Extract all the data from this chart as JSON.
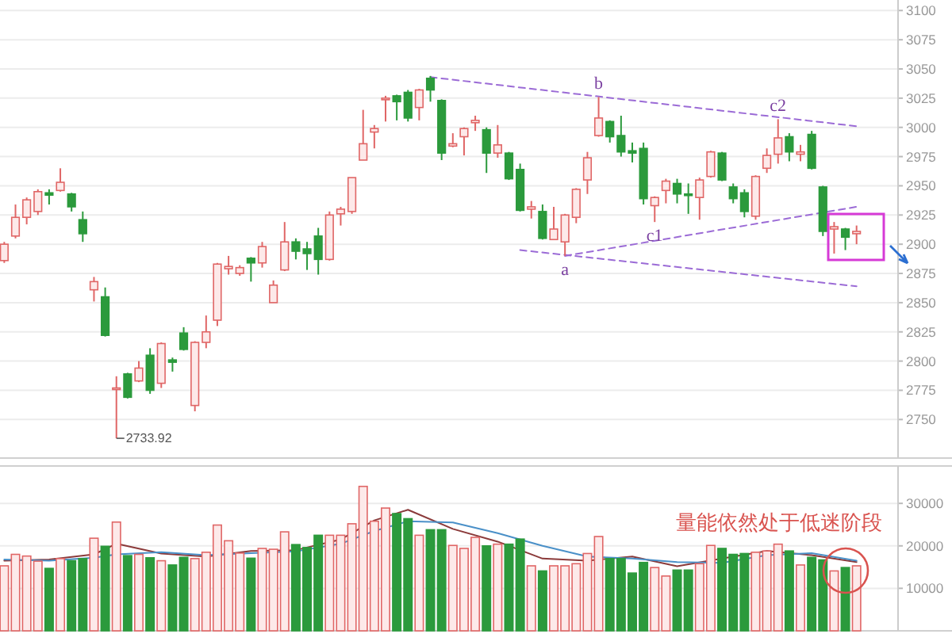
{
  "chart_data": [
    {
      "type": "candlestick",
      "categories": [
        null,
        null,
        null,
        null,
        null,
        null,
        null,
        null,
        null,
        null,
        null,
        null,
        null,
        null,
        null,
        null,
        null,
        null,
        null,
        null,
        null,
        null,
        null,
        null,
        null,
        null,
        null,
        null,
        null,
        null,
        null,
        null,
        null,
        null,
        null,
        null,
        null,
        null,
        null,
        null,
        null,
        null,
        null,
        null,
        null,
        null,
        null,
        null,
        null,
        null,
        null,
        null,
        null,
        null,
        null,
        null,
        null,
        null,
        null,
        null,
        null,
        null,
        null,
        null,
        null,
        null,
        null,
        null,
        null,
        null,
        null,
        null,
        null,
        null,
        null,
        null,
        null
      ],
      "ylim": [
        2717,
        3109
      ],
      "yticks": [
        2750,
        2775,
        2800,
        2825,
        2850,
        2875,
        2900,
        2925,
        2950,
        2975,
        3000,
        3025,
        3050,
        3075,
        3100
      ],
      "grid": "y",
      "tick_labels": "y",
      "ohlc": [
        [
          2886,
          2902,
          2884,
          2900
        ],
        [
          2907,
          2934,
          2905,
          2923
        ],
        [
          2923,
          2940,
          2917,
          2938
        ],
        [
          2928,
          2947,
          2925,
          2945
        ],
        [
          2944,
          2947,
          2934,
          2942
        ],
        [
          2946,
          2965,
          2945,
          2953
        ],
        [
          2943,
          2944,
          2928,
          2932
        ],
        [
          2921,
          2928,
          2902,
          2909
        ],
        [
          2861,
          2872,
          2851,
          2868
        ],
        [
          2855,
          2863,
          2821,
          2822
        ],
        [
          2776,
          2787,
          2733.92,
          2777
        ],
        [
          2789,
          2790,
          2768,
          2769
        ],
        [
          2783,
          2800,
          2782,
          2794
        ],
        [
          2805,
          2811,
          2772,
          2775
        ],
        [
          2781,
          2816,
          2777,
          2815
        ],
        [
          2801,
          2803,
          2791,
          2799
        ],
        [
          2824,
          2829,
          2809,
          2810
        ],
        [
          2762,
          2817,
          2757,
          2816
        ],
        [
          2816,
          2839,
          2811,
          2825
        ],
        [
          2835,
          2884,
          2830,
          2883
        ],
        [
          2879,
          2890,
          2874,
          2881
        ],
        [
          2875,
          2882,
          2873,
          2880
        ],
        [
          2888,
          2889,
          2868,
          2884
        ],
        [
          2884,
          2902,
          2880,
          2898
        ],
        [
          2850,
          2869,
          2850,
          2865
        ],
        [
          2878,
          2919,
          2877,
          2902
        ],
        [
          2902,
          2905,
          2887,
          2894
        ],
        [
          2896,
          2902,
          2878,
          2892
        ],
        [
          2907,
          2914,
          2874,
          2887
        ],
        [
          2887,
          2928,
          2886,
          2925
        ],
        [
          2926,
          2932,
          2916,
          2930
        ],
        [
          2928,
          2957,
          2926,
          2957
        ],
        [
          2972,
          3015,
          2972,
          2986
        ],
        [
          2996,
          3002,
          2982,
          2999
        ],
        [
          3024,
          3027,
          3005,
          3025
        ],
        [
          3027,
          3028,
          3006,
          3022
        ],
        [
          3030,
          3032,
          3005,
          3008
        ],
        [
          3017,
          3033,
          3006,
          3032
        ],
        [
          3042,
          3044,
          3022,
          3032
        ],
        [
          3023,
          3024,
          2972,
          2978
        ],
        [
          2984,
          2995,
          2983,
          2986
        ],
        [
          2992,
          3000,
          2976,
          2999
        ],
        [
          3004,
          3010,
          2997,
          3006
        ],
        [
          2998,
          3000,
          2961,
          2978
        ],
        [
          2978,
          3002,
          2974,
          2985
        ],
        [
          2978,
          2979,
          2955,
          2956
        ],
        [
          2964,
          2969,
          2928,
          2929
        ],
        [
          2930,
          2937,
          2922,
          2932
        ],
        [
          2928,
          2934,
          2904,
          2905
        ],
        [
          2904,
          2932,
          2904,
          2913
        ],
        [
          2902,
          2926,
          2890,
          2925
        ],
        [
          2923,
          2948,
          2918,
          2947
        ],
        [
          2955,
          2979,
          2943,
          2974
        ],
        [
          2993,
          3026,
          2992,
          3008
        ],
        [
          3005,
          3006,
          2987,
          2992
        ],
        [
          2993,
          3010,
          2975,
          2979
        ],
        [
          2980,
          2987,
          2970,
          2978
        ],
        [
          2982,
          2987,
          2934,
          2939
        ],
        [
          2933,
          2941,
          2919,
          2940
        ],
        [
          2946,
          2956,
          2935,
          2954
        ],
        [
          2952,
          2956,
          2935,
          2943
        ],
        [
          2943,
          2952,
          2926,
          2942
        ],
        [
          2940,
          2957,
          2921,
          2955
        ],
        [
          2958,
          2980,
          2957,
          2979
        ],
        [
          2978,
          2979,
          2954,
          2955
        ],
        [
          2949,
          2952,
          2935,
          2939
        ],
        [
          2944,
          2947,
          2923,
          2928
        ],
        [
          2924,
          2959,
          2921,
          2958
        ],
        [
          2965,
          2982,
          2961,
          2976
        ],
        [
          2977,
          3007,
          2969,
          2991
        ],
        [
          2992,
          2995,
          2971,
          2979
        ],
        [
          2977,
          2985,
          2971,
          2979
        ],
        [
          2994,
          2997,
          2964,
          2965
        ],
        [
          2949,
          2950,
          2907,
          2911
        ],
        [
          2913,
          2919,
          2892,
          2915
        ],
        [
          2913,
          2914,
          2895,
          2906
        ],
        [
          2909,
          2916,
          2900,
          2911
        ]
      ],
      "colors": [
        "#e06666",
        "#e06666",
        "#e06666",
        "#e06666",
        "#2b9a3c",
        "#e06666",
        "#2b9a3c",
        "#2b9a3c",
        "#e06666",
        "#2b9a3c",
        "#e06666",
        "#2b9a3c",
        "#e06666",
        "#2b9a3c",
        "#e06666",
        "#2b9a3c",
        "#2b9a3c",
        "#e06666",
        "#e06666",
        "#e06666",
        "#e06666",
        "#e06666",
        "#2b9a3c",
        "#e06666",
        "#e06666",
        "#e06666",
        "#2b9a3c",
        "#2b9a3c",
        "#2b9a3c",
        "#e06666",
        "#e06666",
        "#e06666",
        "#e06666",
        "#e06666",
        "#e06666",
        "#2b9a3c",
        "#2b9a3c",
        "#e06666",
        "#2b9a3c",
        "#2b9a3c",
        "#e06666",
        "#e06666",
        "#e06666",
        "#2b9a3c",
        "#e06666",
        "#2b9a3c",
        "#2b9a3c",
        "#e06666",
        "#2b9a3c",
        "#e06666",
        "#e06666",
        "#e06666",
        "#e06666",
        "#e06666",
        "#2b9a3c",
        "#2b9a3c",
        "#2b9a3c",
        "#2b9a3c",
        "#e06666",
        "#e06666",
        "#2b9a3c",
        "#2b9a3c",
        "#e06666",
        "#e06666",
        "#2b9a3c",
        "#2b9a3c",
        "#2b9a3c",
        "#e06666",
        "#e06666",
        "#e06666",
        "#2b9a3c",
        "#e06666",
        "#2b9a3c",
        "#2b9a3c",
        "#e06666",
        "#2b9a3c",
        "#e06666"
      ],
      "series": [
        {
          "type": "line",
          "values": [
            null,
            null,
            null,
            null,
            null,
            null,
            null,
            null,
            null,
            null,
            null,
            null,
            null,
            null,
            null,
            null,
            null,
            null,
            null,
            null,
            null,
            null,
            null,
            null,
            null,
            null,
            null,
            null,
            null,
            null,
            null,
            null,
            null,
            null,
            null,
            null,
            null,
            null,
            3043,
            null,
            null,
            null,
            null,
            null,
            null,
            null,
            null,
            null,
            null,
            null,
            null,
            null,
            null,
            null,
            null,
            null,
            null,
            null,
            null,
            null,
            null,
            null,
            null,
            null,
            null,
            null,
            null,
            null,
            null,
            null,
            null,
            null,
            null,
            null,
            null,
            null,
            3001
          ],
          "color": "#9b6bd6",
          "line_style": "dashed"
        },
        {
          "type": "line",
          "values": [
            null,
            null,
            null,
            null,
            null,
            null,
            null,
            null,
            null,
            null,
            null,
            null,
            null,
            null,
            null,
            null,
            null,
            null,
            null,
            null,
            null,
            null,
            null,
            null,
            null,
            null,
            null,
            null,
            null,
            null,
            null,
            null,
            null,
            null,
            null,
            null,
            null,
            null,
            null,
            null,
            null,
            null,
            null,
            null,
            null,
            null,
            null,
            null,
            null,
            null,
            2890,
            null,
            null,
            null,
            null,
            null,
            null,
            null,
            null,
            null,
            null,
            null,
            null,
            null,
            null,
            null,
            null,
            null,
            null,
            null,
            null,
            null,
            null,
            null,
            null,
            null,
            2932
          ],
          "color": "#9b6bd6",
          "line_style": "dashed"
        },
        {
          "type": "line",
          "values": [
            null,
            null,
            null,
            null,
            null,
            null,
            null,
            null,
            null,
            null,
            null,
            null,
            null,
            null,
            null,
            null,
            null,
            null,
            null,
            null,
            null,
            null,
            null,
            null,
            null,
            null,
            null,
            null,
            null,
            null,
            null,
            null,
            null,
            null,
            null,
            null,
            null,
            null,
            null,
            null,
            null,
            null,
            null,
            null,
            null,
            null,
            2895,
            null,
            null,
            null,
            null,
            null,
            null,
            null,
            null,
            null,
            null,
            null,
            null,
            null,
            null,
            null,
            null,
            null,
            null,
            null,
            null,
            null,
            null,
            null,
            null,
            null,
            null,
            null,
            null,
            null,
            2864
          ],
          "color": "#9b6bd6",
          "line_style": "dashed"
        }
      ],
      "annotations": [
        "2733.92",
        {
          "text": "a",
          "y": 2890
        },
        {
          "text": "b",
          "y": 3026
        },
        {
          "text": "c1",
          "y": 2919
        },
        {
          "text": "c2",
          "y": 3007
        }
      ]
    },
    {
      "type": "bar",
      "categories": [
        null,
        null,
        null,
        null,
        null,
        null,
        null,
        null,
        null,
        null,
        null,
        null,
        null,
        null,
        null,
        null,
        null,
        null,
        null,
        null,
        null,
        null,
        null,
        null,
        null,
        null,
        null,
        null,
        null,
        null,
        null,
        null,
        null,
        null,
        null,
        null,
        null,
        null,
        null,
        null,
        null,
        null,
        null,
        null,
        null,
        null,
        null,
        null,
        null,
        null,
        null,
        null,
        null,
        null,
        null,
        null,
        null,
        null,
        null,
        null,
        null,
        null,
        null,
        null,
        null,
        null,
        null,
        null,
        null,
        null,
        null,
        null,
        null,
        null,
        null,
        null,
        null
      ],
      "ylim": [
        0,
        38800
      ],
      "yticks": [
        10000,
        20000,
        30000
      ],
      "grid": "y",
      "tick_labels": "y",
      "values": [
        15300,
        18000,
        17600,
        16400,
        14700,
        17000,
        16500,
        17000,
        21800,
        19900,
        25600,
        17700,
        18000,
        17200,
        16500,
        15500,
        17300,
        17000,
        18500,
        24900,
        21200,
        18300,
        17100,
        19400,
        19200,
        23300,
        20300,
        19600,
        22500,
        22500,
        22500,
        25200,
        34000,
        25800,
        28900,
        27600,
        26400,
        22500,
        23800,
        23800,
        20100,
        19400,
        22000,
        20000,
        20400,
        20400,
        21600,
        15300,
        14100,
        15300,
        15300,
        15800,
        18200,
        22200,
        17000,
        17000,
        13600,
        16100,
        14900,
        12900,
        14300,
        14300,
        15800,
        20100,
        19400,
        18000,
        18200,
        18500,
        18800,
        20400,
        18800,
        15500,
        17300,
        16700,
        14100,
        14900,
        15300
      ],
      "colors": [
        "#e06666",
        "#e06666",
        "#e06666",
        "#e06666",
        "#2b9a3c",
        "#e06666",
        "#2b9a3c",
        "#2b9a3c",
        "#e06666",
        "#2b9a3c",
        "#e06666",
        "#2b9a3c",
        "#e06666",
        "#2b9a3c",
        "#e06666",
        "#2b9a3c",
        "#2b9a3c",
        "#e06666",
        "#e06666",
        "#e06666",
        "#e06666",
        "#e06666",
        "#2b9a3c",
        "#e06666",
        "#e06666",
        "#e06666",
        "#2b9a3c",
        "#2b9a3c",
        "#2b9a3c",
        "#e06666",
        "#e06666",
        "#e06666",
        "#e06666",
        "#e06666",
        "#e06666",
        "#2b9a3c",
        "#2b9a3c",
        "#e06666",
        "#2b9a3c",
        "#2b9a3c",
        "#e06666",
        "#e06666",
        "#e06666",
        "#2b9a3c",
        "#e06666",
        "#2b9a3c",
        "#2b9a3c",
        "#e06666",
        "#2b9a3c",
        "#e06666",
        "#e06666",
        "#e06666",
        "#e06666",
        "#e06666",
        "#2b9a3c",
        "#2b9a3c",
        "#2b9a3c",
        "#2b9a3c",
        "#e06666",
        "#e06666",
        "#2b9a3c",
        "#2b9a3c",
        "#e06666",
        "#e06666",
        "#2b9a3c",
        "#2b9a3c",
        "#2b9a3c",
        "#e06666",
        "#e06666",
        "#e06666",
        "#2b9a3c",
        "#e06666",
        "#2b9a3c",
        "#2b9a3c",
        "#e06666",
        "#2b9a3c",
        "#e06666"
      ],
      "series": [
        {
          "type": "line",
          "values": [
            16500,
            null,
            null,
            null,
            16800,
            null,
            null,
            null,
            18000,
            null,
            20500,
            null,
            null,
            null,
            18200,
            null,
            null,
            null,
            17500,
            null,
            null,
            null,
            18800,
            null,
            null,
            null,
            19000,
            null,
            null,
            null,
            21500,
            null,
            null,
            26000,
            null,
            null,
            28500,
            null,
            null,
            null,
            24000,
            null,
            null,
            null,
            21000,
            null,
            null,
            null,
            17000,
            null,
            null,
            null,
            16500,
            null,
            null,
            null,
            17500,
            null,
            null,
            null,
            15200,
            null,
            null,
            null,
            17000,
            null,
            null,
            null,
            18800,
            null,
            null,
            null,
            17800,
            null,
            null,
            null,
            16200
          ],
          "color": "#8b3a3a",
          "line_style": "solid"
        },
        {
          "type": "line",
          "values": [
            16800,
            null,
            null,
            null,
            16500,
            null,
            null,
            null,
            17200,
            null,
            18000,
            null,
            null,
            null,
            18500,
            null,
            null,
            null,
            17800,
            null,
            null,
            null,
            18300,
            null,
            null,
            null,
            18700,
            null,
            null,
            null,
            20500,
            null,
            null,
            23500,
            null,
            null,
            25800,
            null,
            null,
            null,
            25500,
            null,
            null,
            null,
            23000,
            null,
            null,
            null,
            20000,
            null,
            null,
            null,
            17500,
            null,
            null,
            null,
            17000,
            null,
            null,
            null,
            16200,
            null,
            null,
            null,
            16000,
            null,
            null,
            null,
            17800,
            null,
            null,
            null,
            18300,
            null,
            null,
            null,
            16500
          ],
          "color": "#4a90c8",
          "line_style": "solid"
        }
      ],
      "annotations": [
        "量能依然处于低迷阶段"
      ]
    }
  ]
}
